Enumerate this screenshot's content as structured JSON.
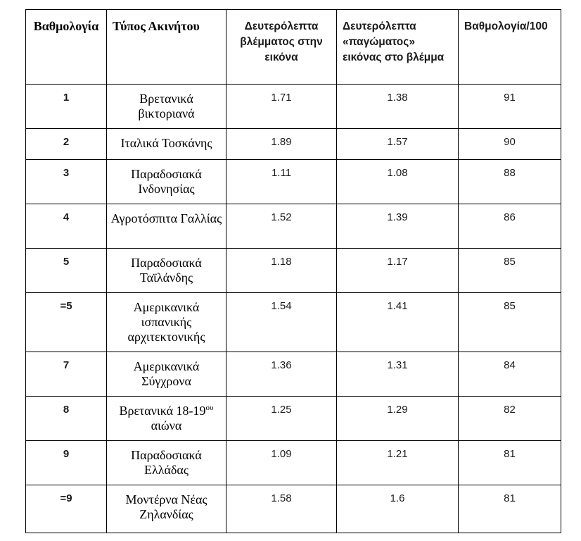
{
  "table": {
    "headers": {
      "rank": "Βαθμολογία",
      "property_type": "Τύπος Ακινήτου",
      "gaze_seconds": "Δευτερόλεπτα βλέμματος στην εικόνα",
      "freeze_seconds": "Δευτερόλεπτα «παγώματος» εικόνας στο βλέμμα",
      "score": "Βαθμολογία/100"
    },
    "rows": [
      {
        "rank": "1",
        "type": "Βρετανικά βικτοριανά",
        "gaze": "1.71",
        "freeze": "1.38",
        "score": "91"
      },
      {
        "rank": "2",
        "type": "Ιταλικά Τοσκάνης",
        "gaze": "1.89",
        "freeze": "1.57",
        "score": "90"
      },
      {
        "rank": "3",
        "type": "Παραδοσιακά Ινδονησίας",
        "gaze": "1.11",
        "freeze": "1.08",
        "score": "88"
      },
      {
        "rank": "4",
        "type": "Αγροτόσπιτα Γαλλίας",
        "gaze": "1.52",
        "freeze": "1.39",
        "score": "86"
      },
      {
        "rank": "5",
        "type": "Παραδοσιακά Ταϊλάνδης",
        "gaze": "1.18",
        "freeze": "1.17",
        "score": "85"
      },
      {
        "rank": "=5",
        "type": "Αμερικανικά ισπανικής αρχιτεκτονικής",
        "gaze": "1.54",
        "freeze": "1.41",
        "score": "85"
      },
      {
        "rank": "7",
        "type": "Αμερικανικά Σύγχρονα",
        "gaze": "1.36",
        "freeze": "1.31",
        "score": "84"
      },
      {
        "rank": "8",
        "type_before_sup": "Βρετανικά 18-19",
        "type_sup": "ου",
        "type_after_sup": " αιώνα",
        "gaze": "1.25",
        "freeze": "1.29",
        "score": "82"
      },
      {
        "rank": "9",
        "type": "Παραδοσιακά Ελλάδας",
        "gaze": "1.09",
        "freeze": "1.21",
        "score": "81"
      },
      {
        "rank": "=9",
        "type": "Μοντέρνα Νέας Ζηλανδίας",
        "gaze": "1.58",
        "freeze": "1.6",
        "score": "81"
      }
    ]
  },
  "colors": {
    "border": "#000000",
    "text": "#000000",
    "background": "#ffffff"
  }
}
